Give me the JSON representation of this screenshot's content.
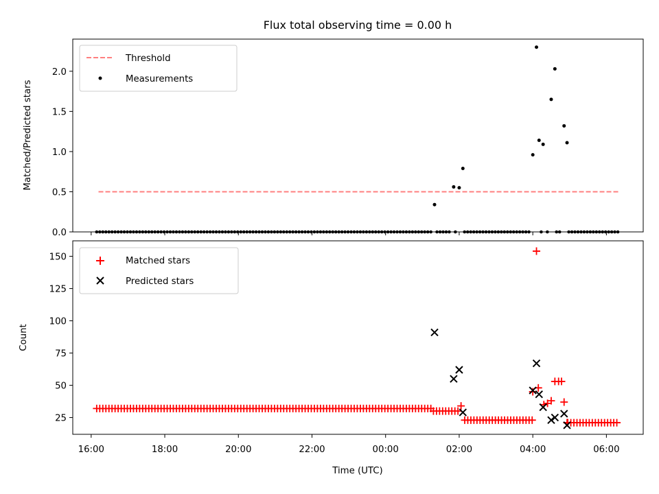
{
  "chart_data": [
    {
      "type": "scatter",
      "title": "Flux total observing time = 0.00 h",
      "xlabel": "",
      "ylabel": "Matched/Predicted stars",
      "ylim": [
        0,
        2.4
      ],
      "yticks": [
        0,
        0.5,
        1.0,
        1.5,
        2.0
      ],
      "ytick_labels": [
        "0.0",
        "0.5",
        "1.0",
        "1.5",
        "2.0"
      ],
      "xlim": [
        15.5,
        31.0
      ],
      "legend_position": "top-left",
      "threshold": {
        "name": "Threshold",
        "y": 0.5,
        "x_start": 16.2,
        "x_end": 30.35,
        "color": "#ff7f7f"
      },
      "series": [
        {
          "name": "Measurements",
          "color": "#000000",
          "zero_run": {
            "x_start": 16.15,
            "x_end": 30.35,
            "step": 0.0833,
            "y": 0
          },
          "points": [
            {
              "x": 25.33,
              "y": 0.34
            },
            {
              "x": 25.85,
              "y": 0.56
            },
            {
              "x": 26.0,
              "y": 0.55
            },
            {
              "x": 26.1,
              "y": 0.79
            },
            {
              "x": 28.0,
              "y": 0.96
            },
            {
              "x": 28.1,
              "y": 2.3
            },
            {
              "x": 28.17,
              "y": 1.14
            },
            {
              "x": 28.28,
              "y": 1.09
            },
            {
              "x": 28.5,
              "y": 1.65
            },
            {
              "x": 28.6,
              "y": 2.03
            },
            {
              "x": 28.85,
              "y": 1.32
            },
            {
              "x": 28.93,
              "y": 1.11
            }
          ]
        }
      ]
    },
    {
      "type": "scatter",
      "title": "",
      "xlabel": "Time (UTC)",
      "ylabel": "Count",
      "ylim": [
        12,
        162
      ],
      "yticks": [
        25,
        50,
        75,
        100,
        125,
        150
      ],
      "ytick_labels": [
        "25",
        "50",
        "75",
        "100",
        "125",
        "150"
      ],
      "xlim": [
        15.5,
        31.0
      ],
      "xticks": [
        16,
        18,
        20,
        22,
        24,
        26,
        28,
        30
      ],
      "xtick_labels": [
        "16:00",
        "18:00",
        "20:00",
        "22:00",
        "00:00",
        "02:00",
        "04:00",
        "06:00"
      ],
      "legend_position": "top-left",
      "series": [
        {
          "name": "Matched stars",
          "color": "#ff0000",
          "marker": "plus",
          "segments": [
            {
              "x_start": 16.15,
              "x_end": 25.25,
              "step": 0.0833,
              "y": 32
            },
            {
              "x_start": 25.3,
              "x_end": 26.0,
              "step": 0.0833,
              "y": 30
            },
            {
              "x_start": 26.15,
              "x_end": 28.0,
              "step": 0.0833,
              "y": 23
            },
            {
              "x_start": 28.95,
              "x_end": 30.35,
              "step": 0.0833,
              "y": 21
            }
          ],
          "points": [
            {
              "x": 26.05,
              "y": 34
            },
            {
              "x": 28.1,
              "y": 154
            },
            {
              "x": 28.0,
              "y": 45
            },
            {
              "x": 28.15,
              "y": 48
            },
            {
              "x": 28.3,
              "y": 35
            },
            {
              "x": 28.4,
              "y": 36
            },
            {
              "x": 28.5,
              "y": 38
            },
            {
              "x": 28.6,
              "y": 53
            },
            {
              "x": 28.7,
              "y": 53
            },
            {
              "x": 28.78,
              "y": 53
            },
            {
              "x": 28.85,
              "y": 37
            },
            {
              "x": 28.93,
              "y": 21
            }
          ]
        },
        {
          "name": "Predicted stars",
          "color": "#000000",
          "marker": "x",
          "points": [
            {
              "x": 25.33,
              "y": 91
            },
            {
              "x": 25.85,
              "y": 55
            },
            {
              "x": 26.0,
              "y": 62
            },
            {
              "x": 26.1,
              "y": 29
            },
            {
              "x": 28.0,
              "y": 46
            },
            {
              "x": 28.1,
              "y": 67
            },
            {
              "x": 28.17,
              "y": 43
            },
            {
              "x": 28.28,
              "y": 33
            },
            {
              "x": 28.5,
              "y": 23
            },
            {
              "x": 28.6,
              "y": 25
            },
            {
              "x": 28.85,
              "y": 28
            },
            {
              "x": 28.93,
              "y": 19
            }
          ]
        }
      ]
    }
  ]
}
